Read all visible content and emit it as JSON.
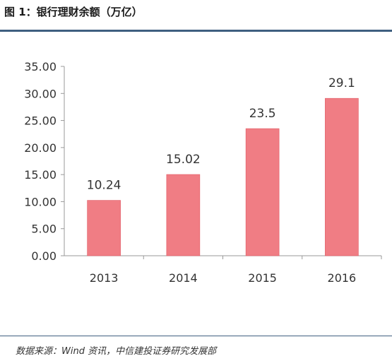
{
  "figure": {
    "title": "图 1：银行理财余额（万亿）",
    "source": "数据来源：Wind 资讯，中信建投证券研究发展部"
  },
  "colors": {
    "bar": "#f07d84",
    "bar_stroke": "#e05a63",
    "axis": "#999999",
    "rule": "#3f5f80"
  },
  "chart_data": {
    "type": "bar",
    "categories": [
      "2013",
      "2014",
      "2015",
      "2016"
    ],
    "values": [
      10.24,
      15.02,
      23.5,
      29.1
    ],
    "value_labels": [
      "10.24",
      "15.02",
      "23.5",
      "29.1"
    ],
    "ylim": [
      0,
      35
    ],
    "yticks": [
      "0.00",
      "5.00",
      "10.00",
      "15.00",
      "20.00",
      "25.00",
      "30.00",
      "35.00"
    ],
    "ytick_values": [
      0,
      5,
      10,
      15,
      20,
      25,
      30,
      35
    ],
    "grid": false,
    "legend": "none"
  }
}
